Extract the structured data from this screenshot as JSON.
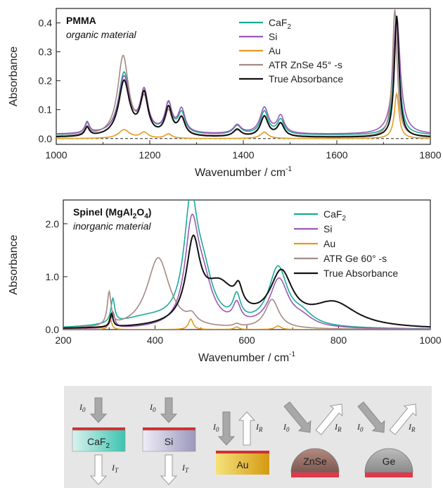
{
  "chart_data": [
    {
      "type": "line",
      "title": "PMMA",
      "subtitle": "organic material",
      "xlabel": "Wavenumber / cm",
      "xlabel_sup": "-1",
      "ylabel": "Absorbance",
      "xlim": [
        1000,
        1800
      ],
      "ylim": [
        -0.02,
        0.45
      ],
      "xticks": [
        "1000",
        "1200",
        "1400",
        "1600",
        "1800"
      ],
      "yticks": [
        "0.0",
        "0.1",
        "0.2",
        "0.3",
        "0.4"
      ],
      "baseline_dashed": true,
      "legend_position": "top-center",
      "series": [
        {
          "name": "CaF",
          "name_sub": "2",
          "color": "#1aab96",
          "peaks": [
            [
              1066,
              0.04,
              6
            ],
            [
              1145,
              0.21,
              14
            ],
            [
              1188,
              0.14,
              10
            ],
            [
              1240,
              0.1,
              9
            ],
            [
              1268,
              0.07,
              9
            ],
            [
              1387,
              0.03,
              10
            ],
            [
              1445,
              0.08,
              10
            ],
            [
              1480,
              0.05,
              9
            ],
            [
              1728,
              0.4,
              7
            ]
          ],
          "base": 0.012
        },
        {
          "name": "Si",
          "name_sub": "",
          "color": "#9b59b6",
          "peaks": [
            [
              1066,
              0.035,
              6
            ],
            [
              1145,
              0.195,
              14
            ],
            [
              1188,
              0.14,
              10
            ],
            [
              1240,
              0.1,
              9
            ],
            [
              1268,
              0.08,
              9
            ],
            [
              1387,
              0.03,
              10
            ],
            [
              1445,
              0.09,
              11
            ],
            [
              1480,
              0.06,
              9
            ],
            [
              1728,
              0.41,
              9
            ]
          ],
          "base": 0.014
        },
        {
          "name": "Au",
          "name_sub": "",
          "color": "#e39a20",
          "peaks": [
            [
              1145,
              0.03,
              14
            ],
            [
              1188,
              0.02,
              10
            ],
            [
              1240,
              0.015,
              9
            ],
            [
              1445,
              0.022,
              10
            ],
            [
              1728,
              0.155,
              6
            ]
          ],
          "base": 0.0
        },
        {
          "name": "ATR ZnSe 45° -s",
          "name_sub": "",
          "color": "#a48a84",
          "peaks": [
            [
              1066,
              0.03,
              6
            ],
            [
              1143,
              0.275,
              14
            ],
            [
              1188,
              0.12,
              10
            ],
            [
              1240,
              0.08,
              9
            ],
            [
              1268,
              0.06,
              9
            ],
            [
              1387,
              0.02,
              10
            ],
            [
              1445,
              0.07,
              10
            ],
            [
              1480,
              0.04,
              9
            ],
            [
              1724,
              0.44,
              6
            ]
          ],
          "base": 0.006
        },
        {
          "name": "True Absorbance",
          "name_sub": "",
          "color": "#111111",
          "peaks": [
            [
              1066,
              0.03,
              6
            ],
            [
              1145,
              0.19,
              14
            ],
            [
              1188,
              0.14,
              10
            ],
            [
              1240,
              0.095,
              9
            ],
            [
              1268,
              0.06,
              9
            ],
            [
              1387,
              0.025,
              10
            ],
            [
              1445,
              0.07,
              10
            ],
            [
              1480,
              0.045,
              9
            ],
            [
              1728,
              0.42,
              6
            ]
          ],
          "base": 0.004
        }
      ]
    },
    {
      "type": "line",
      "title": "Spinel (MgAl",
      "title_sub": "2",
      "title_tail": "O",
      "title_sub2": "4",
      "title_end": ")",
      "subtitle": "inorganic material",
      "xlabel": "Wavenumber / cm",
      "xlabel_sup": "-1",
      "ylabel": "Absorbance",
      "xlim": [
        200,
        1000
      ],
      "ylim": [
        0,
        2.45
      ],
      "xticks": [
        "200",
        "400",
        "600",
        "800",
        "1000"
      ],
      "yticks": [
        "0.0",
        "1.0",
        "2.0"
      ],
      "legend_position": "top-right",
      "series": [
        {
          "name": "CaF",
          "name_sub": "2",
          "color": "#1aab96",
          "peaks": [
            [
              308,
              0.45,
              5
            ],
            [
              478,
              2.15,
              18
            ],
            [
              505,
              0.8,
              25
            ],
            [
              578,
              0.45,
              10
            ],
            [
              668,
              1.1,
              25
            ],
            [
              720,
              0.2,
              30
            ],
            [
              380,
              0.18,
              80
            ]
          ],
          "base": 0.0
        },
        {
          "name": "Si",
          "name_sub": "",
          "color": "#9b59b6",
          "peaks": [
            [
              308,
              0.3,
              5
            ],
            [
              480,
              1.8,
              18
            ],
            [
              505,
              0.7,
              25
            ],
            [
              578,
              0.35,
              10
            ],
            [
              670,
              0.9,
              25
            ],
            [
              720,
              0.15,
              30
            ]
          ],
          "base": 0.0
        },
        {
          "name": "Au",
          "name_sub": "",
          "color": "#e39a20",
          "peaks": [
            [
              302,
              0.22,
              4
            ],
            [
              478,
              0.2,
              6
            ],
            [
              578,
              0.05,
              6
            ],
            [
              668,
              0.07,
              8
            ]
          ],
          "base": 0.0
        },
        {
          "name": "ATR Ge 60° -s",
          "name_sub": "",
          "color": "#a48a84",
          "peaks": [
            [
              300,
              0.62,
              5
            ],
            [
              407,
              1.35,
              30
            ],
            [
              480,
              0.15,
              12
            ],
            [
              578,
              0.05,
              8
            ],
            [
              655,
              0.55,
              18
            ]
          ],
          "base": 0.0
        },
        {
          "name": "True Absorbance",
          "name_sub": "",
          "color": "#111111",
          "peaks": [
            [
              305,
              0.25,
              4
            ],
            [
              483,
              1.45,
              18
            ],
            [
              540,
              0.75,
              45
            ],
            [
              582,
              0.35,
              10
            ],
            [
              675,
              0.95,
              30
            ],
            [
              790,
              0.45,
              60
            ]
          ],
          "base": 0.0
        }
      ]
    }
  ],
  "diagram": {
    "boxes": [
      {
        "label": "CaF",
        "label_sub": "2",
        "in": "I",
        "in_sub": "0",
        "out": "I",
        "out_sub": "T"
      },
      {
        "label": "Si",
        "label_sub": "",
        "in": "I",
        "in_sub": "0",
        "out": "I",
        "out_sub": "T"
      },
      {
        "label": "Au",
        "label_sub": "",
        "in": "I",
        "in_sub": "0",
        "out": "I",
        "out_sub": "R"
      },
      {
        "label": "ZnSe",
        "label_sub": "",
        "in": "I",
        "in_sub": "0",
        "out": "I",
        "out_sub": "R"
      },
      {
        "label": "Ge",
        "label_sub": "",
        "in": "I",
        "in_sub": "0",
        "out": "I",
        "out_sub": "R"
      }
    ]
  }
}
